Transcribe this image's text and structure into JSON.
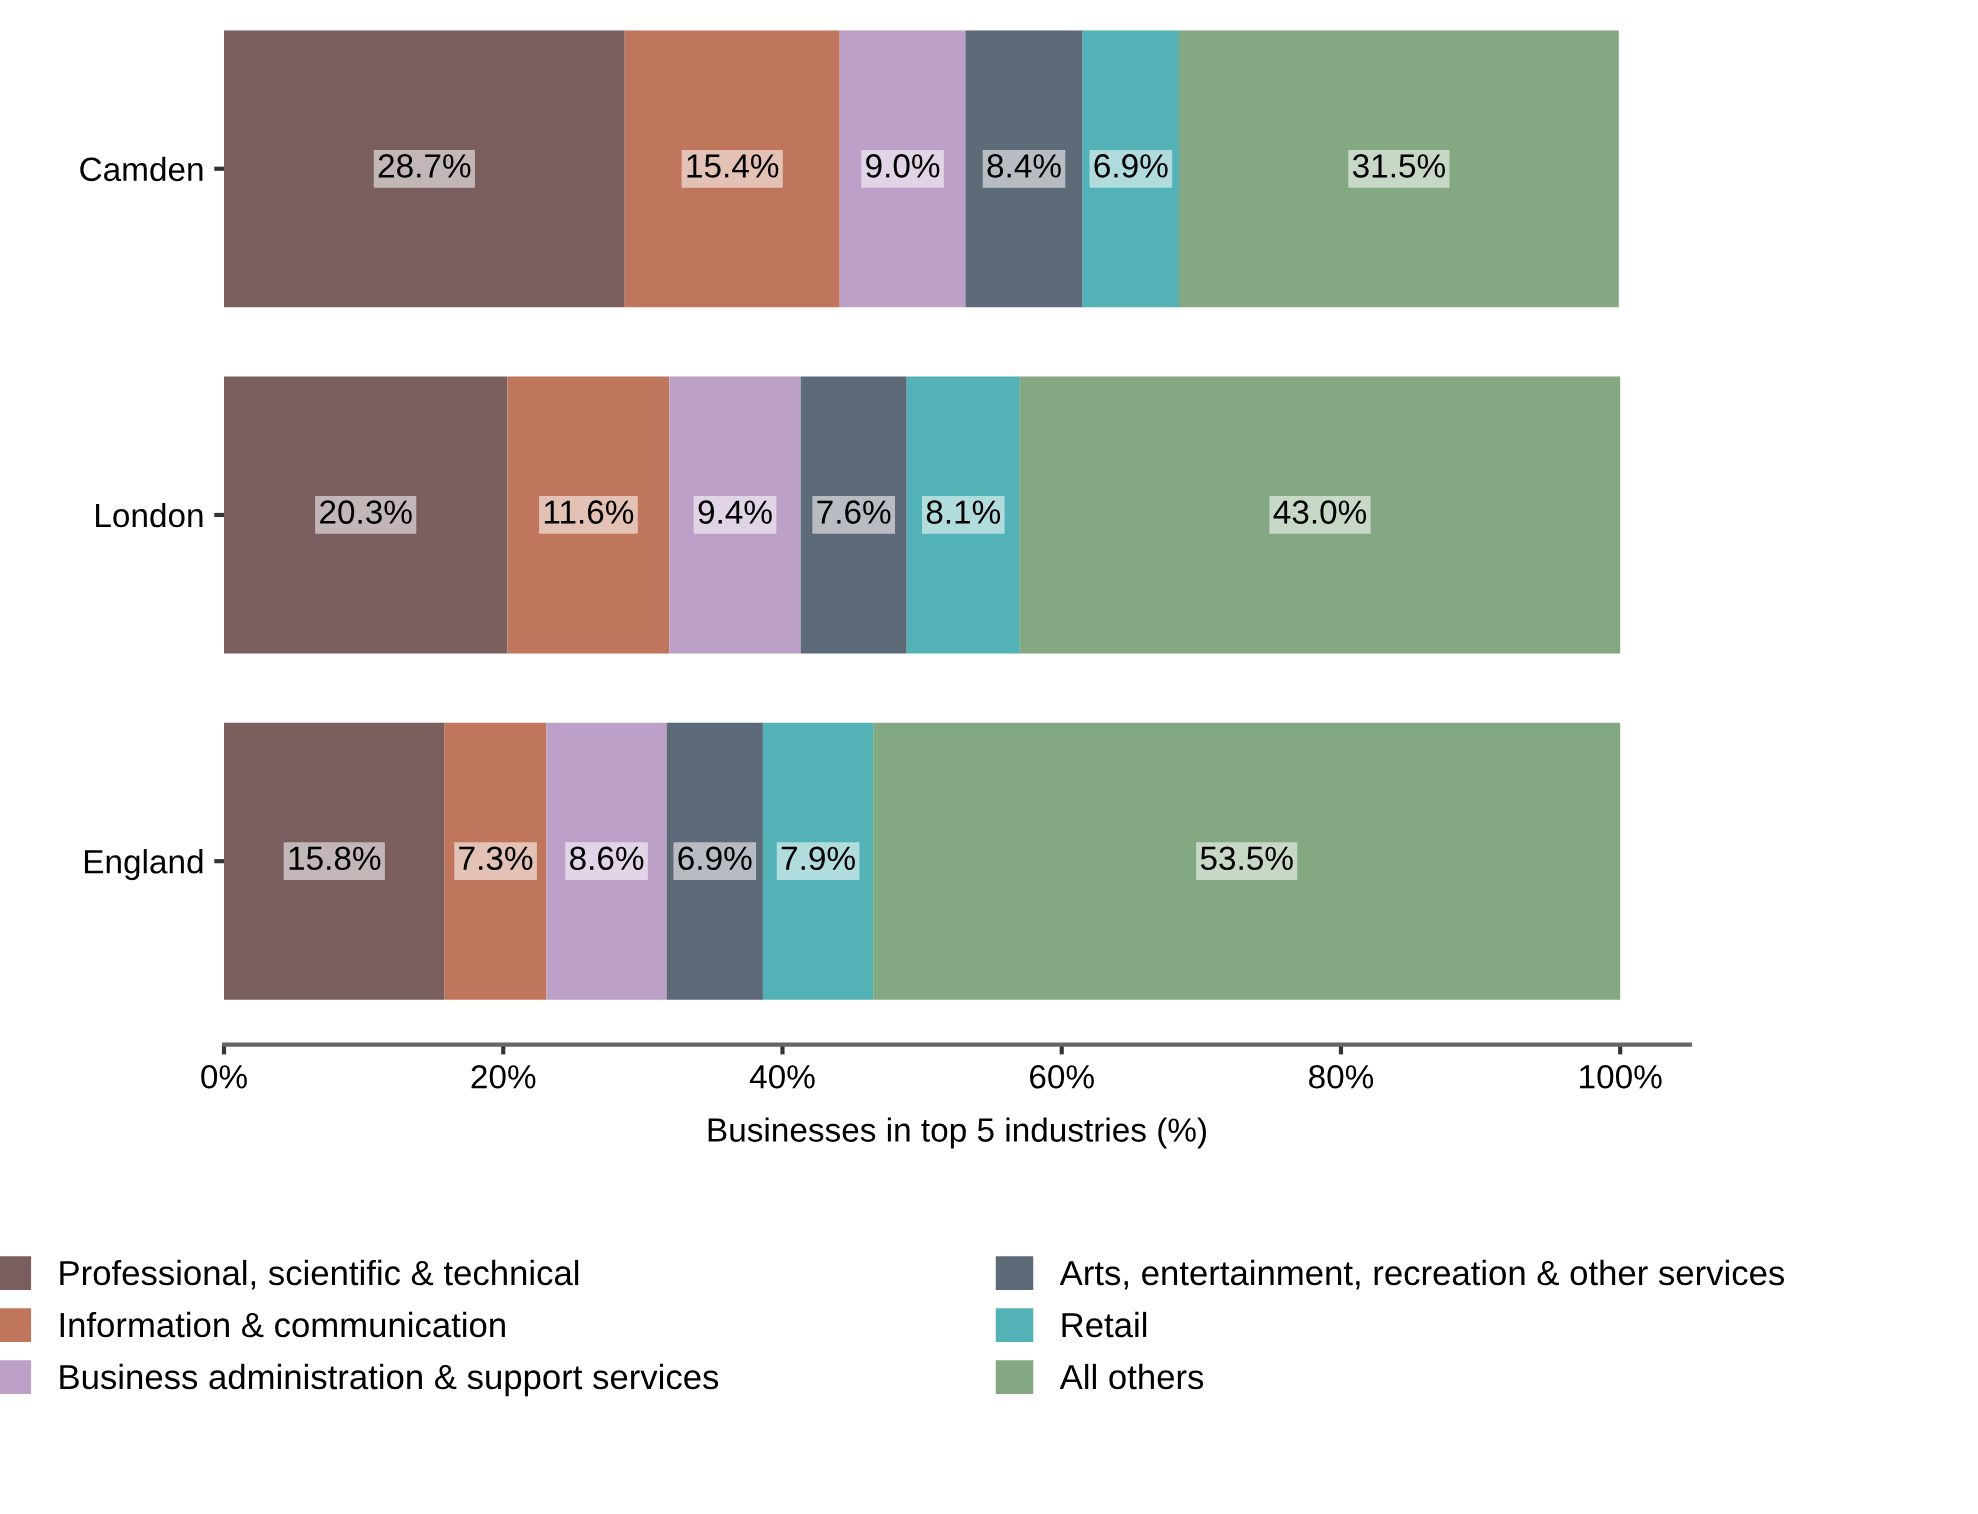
{
  "chart_data": {
    "type": "bar",
    "orientation": "horizontal",
    "stacked": true,
    "categories": [
      "Camden",
      "London",
      "England"
    ],
    "xlabel": "Businesses in top 5 industries (%)",
    "xlim": [
      0,
      105
    ],
    "xticks": [
      {
        "value": 0,
        "label": "0%"
      },
      {
        "value": 20,
        "label": "20%"
      },
      {
        "value": 40,
        "label": "40%"
      },
      {
        "value": 60,
        "label": "60%"
      },
      {
        "value": 80,
        "label": "80%"
      },
      {
        "value": 100,
        "label": "100%"
      }
    ],
    "series": [
      {
        "name": "Professional, scientific & technical",
        "color": "#7b5e5e",
        "values": [
          28.7,
          20.3,
          15.8
        ],
        "value_labels": [
          "28.7%",
          "20.3%",
          "15.8%"
        ]
      },
      {
        "name": "Information & communication",
        "color": "#c0765c",
        "values": [
          15.4,
          11.6,
          7.3
        ],
        "value_labels": [
          "15.4%",
          "11.6%",
          "7.3%"
        ]
      },
      {
        "name": "Business administration & support services",
        "color": "#bda0c8",
        "values": [
          9.0,
          9.4,
          8.6
        ],
        "value_labels": [
          "9.0%",
          "9.4%",
          "8.6%"
        ]
      },
      {
        "name": "Arts, entertainment, recreation & other services",
        "color": "#5d6a78",
        "values": [
          8.4,
          7.6,
          6.9
        ],
        "value_labels": [
          "8.4%",
          "7.6%",
          "6.9%"
        ]
      },
      {
        "name": "Retail",
        "color": "#52b2b6",
        "values": [
          6.9,
          8.1,
          7.9
        ],
        "value_labels": [
          "6.9%",
          "8.1%",
          "7.9%"
        ]
      },
      {
        "name": "All others",
        "color": "#84a882",
        "values": [
          31.5,
          43.0,
          53.5
        ],
        "value_labels": [
          "31.5%",
          "43.0%",
          "53.5%"
        ]
      }
    ],
    "legend": "bottom",
    "grid": false
  }
}
